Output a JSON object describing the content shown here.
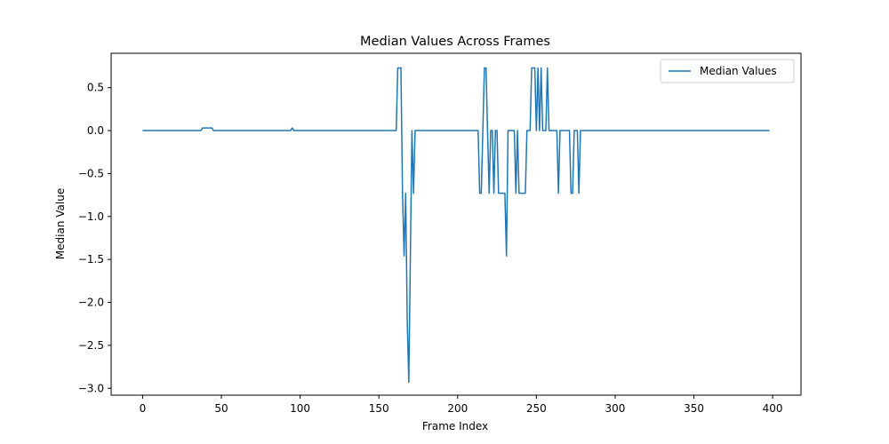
{
  "chart_data": {
    "type": "line",
    "title": "Median Values Across Frames",
    "xlabel": "Frame Index",
    "ylabel": "Median Value",
    "xlim": [
      -20,
      418
    ],
    "ylim": [
      -3.08,
      0.9
    ],
    "xticks": [
      0,
      50,
      100,
      150,
      200,
      250,
      300,
      350,
      400
    ],
    "yticks": [
      0.5,
      0.0,
      -0.5,
      -1.0,
      -1.5,
      -2.0,
      -2.5,
      -3.0
    ],
    "xtick_labels": [
      "0",
      "50",
      "100",
      "150",
      "200",
      "250",
      "300",
      "350",
      "400"
    ],
    "ytick_labels": [
      "0.5",
      "0.0",
      "−0.5",
      "−1.0",
      "−1.5",
      "−2.0",
      "−2.5",
      "−3.0"
    ],
    "grid": false,
    "legend_position": "top-right",
    "series": [
      {
        "name": "Median Values",
        "color": "#1f77b4",
        "points": [
          [
            0,
            0
          ],
          [
            37,
            0
          ],
          [
            38,
            0.03
          ],
          [
            44,
            0.03
          ],
          [
            45,
            0
          ],
          [
            94,
            0
          ],
          [
            95,
            0.03
          ],
          [
            96,
            0
          ],
          [
            161,
            0
          ],
          [
            162,
            0.73
          ],
          [
            164,
            0.73
          ],
          [
            165,
            -0.73
          ],
          [
            166,
            -1.46
          ],
          [
            167,
            -0.73
          ],
          [
            168,
            -2.2
          ],
          [
            169,
            -2.93
          ],
          [
            170,
            -1.46
          ],
          [
            171,
            0
          ],
          [
            172,
            -0.73
          ],
          [
            173,
            0
          ],
          [
            213,
            0
          ],
          [
            214,
            -0.73
          ],
          [
            215,
            -0.73
          ],
          [
            216,
            0
          ],
          [
            217,
            0.73
          ],
          [
            218,
            0.73
          ],
          [
            219,
            0
          ],
          [
            220,
            -0.73
          ],
          [
            221,
            0
          ],
          [
            222,
            0
          ],
          [
            223,
            -0.73
          ],
          [
            224,
            0
          ],
          [
            225,
            0
          ],
          [
            226,
            -0.73
          ],
          [
            227,
            -0.73
          ],
          [
            228,
            -0.73
          ],
          [
            229,
            -0.73
          ],
          [
            230,
            -0.73
          ],
          [
            231,
            -1.46
          ],
          [
            232,
            0
          ],
          [
            236,
            0
          ],
          [
            237,
            -0.73
          ],
          [
            238,
            0
          ],
          [
            239,
            -0.73
          ],
          [
            243,
            -0.73
          ],
          [
            244,
            0
          ],
          [
            246,
            0
          ],
          [
            247,
            0.73
          ],
          [
            249,
            0.73
          ],
          [
            250,
            0
          ],
          [
            251,
            0.73
          ],
          [
            252,
            0
          ],
          [
            253,
            0.73
          ],
          [
            254,
            0
          ],
          [
            256,
            0
          ],
          [
            257,
            0.73
          ],
          [
            258,
            0
          ],
          [
            263,
            0
          ],
          [
            264,
            -0.73
          ],
          [
            265,
            0
          ],
          [
            271,
            0
          ],
          [
            272,
            -0.73
          ],
          [
            273,
            -0.73
          ],
          [
            274,
            0
          ],
          [
            276,
            0
          ],
          [
            277,
            -0.73
          ],
          [
            278,
            0
          ],
          [
            398,
            0
          ]
        ]
      }
    ]
  }
}
